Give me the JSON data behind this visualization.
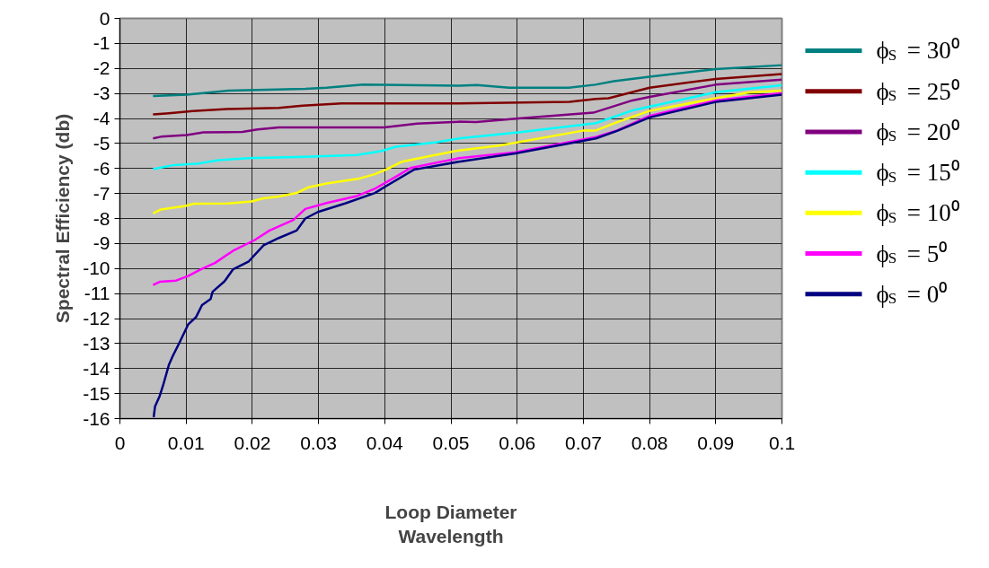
{
  "chart_data": {
    "type": "line",
    "xlabel": "Loop Diameter\nWavelength",
    "ylabel": "Spectral Efficiency (db)",
    "xlim": [
      0,
      0.1
    ],
    "ylim": [
      -16,
      0
    ],
    "xticks": [
      0,
      0.01,
      0.02,
      0.03,
      0.04,
      0.05,
      0.06,
      0.07,
      0.08,
      0.09,
      0.1
    ],
    "yticks": [
      0,
      -1,
      -2,
      -3,
      -4,
      -5,
      -6,
      -7,
      -8,
      -9,
      -10,
      -11,
      -12,
      -13,
      -14,
      -15,
      -16
    ],
    "grid": true,
    "legend": "right",
    "marker": "none",
    "line_style": "solid",
    "series": [
      {
        "name": "ϕ$_{S}$ = 30⁰",
        "color": "#008080",
        "x": [
          0.005,
          0.0101,
          0.0164,
          0.028,
          0.0312,
          0.0367,
          0.0513,
          0.0539,
          0.0588,
          0.0678,
          0.0718,
          0.0746,
          0.08,
          0.09,
          0.1
        ],
        "values": [
          -3.1,
          -3.05,
          -2.89,
          -2.82,
          -2.77,
          -2.65,
          -2.69,
          -2.66,
          -2.77,
          -2.77,
          -2.65,
          -2.51,
          -2.33,
          -2.03,
          -1.87
        ]
      },
      {
        "name": "ϕ$_{S}$ = 25⁰",
        "color": "#800000",
        "x": [
          0.005,
          0.0074,
          0.011,
          0.0162,
          0.024,
          0.0276,
          0.0335,
          0.0512,
          0.0679,
          0.0719,
          0.0738,
          0.08,
          0.09,
          0.1
        ],
        "values": [
          -3.84,
          -3.79,
          -3.7,
          -3.62,
          -3.58,
          -3.49,
          -3.4,
          -3.4,
          -3.34,
          -3.22,
          -3.19,
          -2.77,
          -2.42,
          -2.22
        ]
      },
      {
        "name": "ϕ$_{S}$ = 20⁰",
        "color": "#800080",
        "x": [
          0.005,
          0.0062,
          0.0101,
          0.0126,
          0.0185,
          0.0208,
          0.024,
          0.0399,
          0.0449,
          0.0512,
          0.0538,
          0.0602,
          0.0715,
          0.0774,
          0.08,
          0.09,
          0.1
        ],
        "values": [
          -4.8,
          -4.73,
          -4.66,
          -4.56,
          -4.54,
          -4.44,
          -4.36,
          -4.36,
          -4.21,
          -4.13,
          -4.14,
          -4.0,
          -3.77,
          -3.28,
          -3.14,
          -2.65,
          -2.45
        ]
      },
      {
        "name": "ϕ$_{S}$ = 15⁰",
        "color": "#00ffff",
        "x": [
          0.005,
          0.008,
          0.0119,
          0.0149,
          0.0194,
          0.028,
          0.0358,
          0.0394,
          0.0417,
          0.0476,
          0.0512,
          0.0602,
          0.0719,
          0.0774,
          0.09,
          0.1
        ],
        "values": [
          -6.03,
          -5.87,
          -5.8,
          -5.67,
          -5.59,
          -5.53,
          -5.46,
          -5.31,
          -5.13,
          -4.96,
          -4.8,
          -4.56,
          -4.19,
          -3.68,
          -2.95,
          -2.67
        ]
      },
      {
        "name": "ϕ$_{S}$ = 10⁰",
        "color": "#ffff00",
        "x": [
          0.005,
          0.0062,
          0.0099,
          0.0112,
          0.0162,
          0.0199,
          0.0217,
          0.024,
          0.0267,
          0.0285,
          0.0312,
          0.0362,
          0.0385,
          0.0403,
          0.0426,
          0.0471,
          0.0512,
          0.0575,
          0.0701,
          0.0719,
          0.0751,
          0.08,
          0.09,
          0.095,
          0.1
        ],
        "values": [
          -7.8,
          -7.64,
          -7.5,
          -7.41,
          -7.4,
          -7.32,
          -7.19,
          -7.12,
          -6.98,
          -6.75,
          -6.6,
          -6.4,
          -6.23,
          -6.03,
          -5.73,
          -5.49,
          -5.28,
          -5.08,
          -4.48,
          -4.48,
          -4.15,
          -3.7,
          -3.19,
          -2.96,
          -2.89
        ]
      },
      {
        "name": "ϕ$_{S}$ = 5⁰",
        "color": "#ff00ff",
        "x": [
          0.005,
          0.006,
          0.0085,
          0.0103,
          0.0121,
          0.0144,
          0.0171,
          0.0203,
          0.0226,
          0.0262,
          0.028,
          0.0312,
          0.0358,
          0.0385,
          0.0403,
          0.044,
          0.0512,
          0.0597,
          0.0719,
          0.0751,
          0.08,
          0.09,
          0.1
        ],
        "values": [
          -10.66,
          -10.53,
          -10.48,
          -10.3,
          -10.05,
          -9.77,
          -9.29,
          -8.87,
          -8.48,
          -8.06,
          -7.62,
          -7.38,
          -7.1,
          -6.81,
          -6.54,
          -5.97,
          -5.59,
          -5.35,
          -4.74,
          -4.48,
          -3.9,
          -3.28,
          -2.99
        ]
      },
      {
        "name": "ϕ$_{S}$ = 0⁰",
        "color": "#000080",
        "x": [
          0.0051,
          0.0053,
          0.006,
          0.0065,
          0.0074,
          0.008,
          0.009,
          0.0103,
          0.0115,
          0.0124,
          0.0137,
          0.014,
          0.0158,
          0.0171,
          0.0194,
          0.0217,
          0.024,
          0.0267,
          0.028,
          0.0299,
          0.034,
          0.0385,
          0.0403,
          0.0444,
          0.0512,
          0.0597,
          0.0719,
          0.0751,
          0.08,
          0.09,
          0.1
        ],
        "values": [
          -15.94,
          -15.52,
          -15.1,
          -14.69,
          -13.85,
          -13.49,
          -12.96,
          -12.24,
          -11.94,
          -11.46,
          -11.22,
          -10.93,
          -10.51,
          -10.03,
          -9.73,
          -9.07,
          -8.78,
          -8.48,
          -8.0,
          -7.74,
          -7.4,
          -6.98,
          -6.69,
          -6.05,
          -5.73,
          -5.4,
          -4.8,
          -4.5,
          -3.96,
          -3.34,
          -3.05
        ]
      }
    ]
  }
}
